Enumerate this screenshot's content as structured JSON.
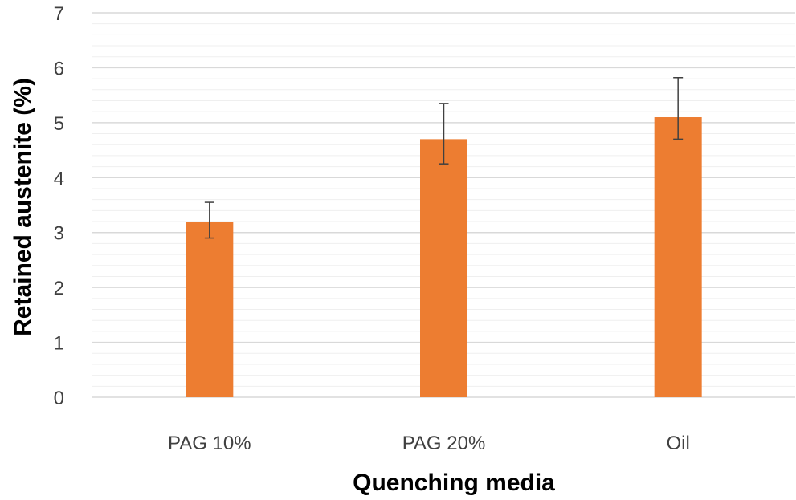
{
  "chart_data": {
    "type": "bar",
    "title": "",
    "xlabel": "Quenching media",
    "ylabel": "Retained austenite (%)",
    "categories": [
      "PAG 10%",
      "PAG 20%",
      "Oil"
    ],
    "series": [
      {
        "values": [
          3.2,
          4.7,
          5.1
        ],
        "error_low": [
          2.9,
          4.25,
          4.7
        ],
        "error_high": [
          3.55,
          5.35,
          5.82
        ]
      }
    ],
    "ylim": [
      0,
      7
    ],
    "yticks": [
      0,
      1,
      2,
      3,
      4,
      5,
      6,
      7
    ],
    "minor_gridlines_per_major": 5,
    "grid": true,
    "legend": "none",
    "colors": {
      "bar": "#ED7D31",
      "major_grid": "#D9D9D9",
      "minor_grid": "#EFEFEF",
      "error_bar": "#404040"
    }
  }
}
